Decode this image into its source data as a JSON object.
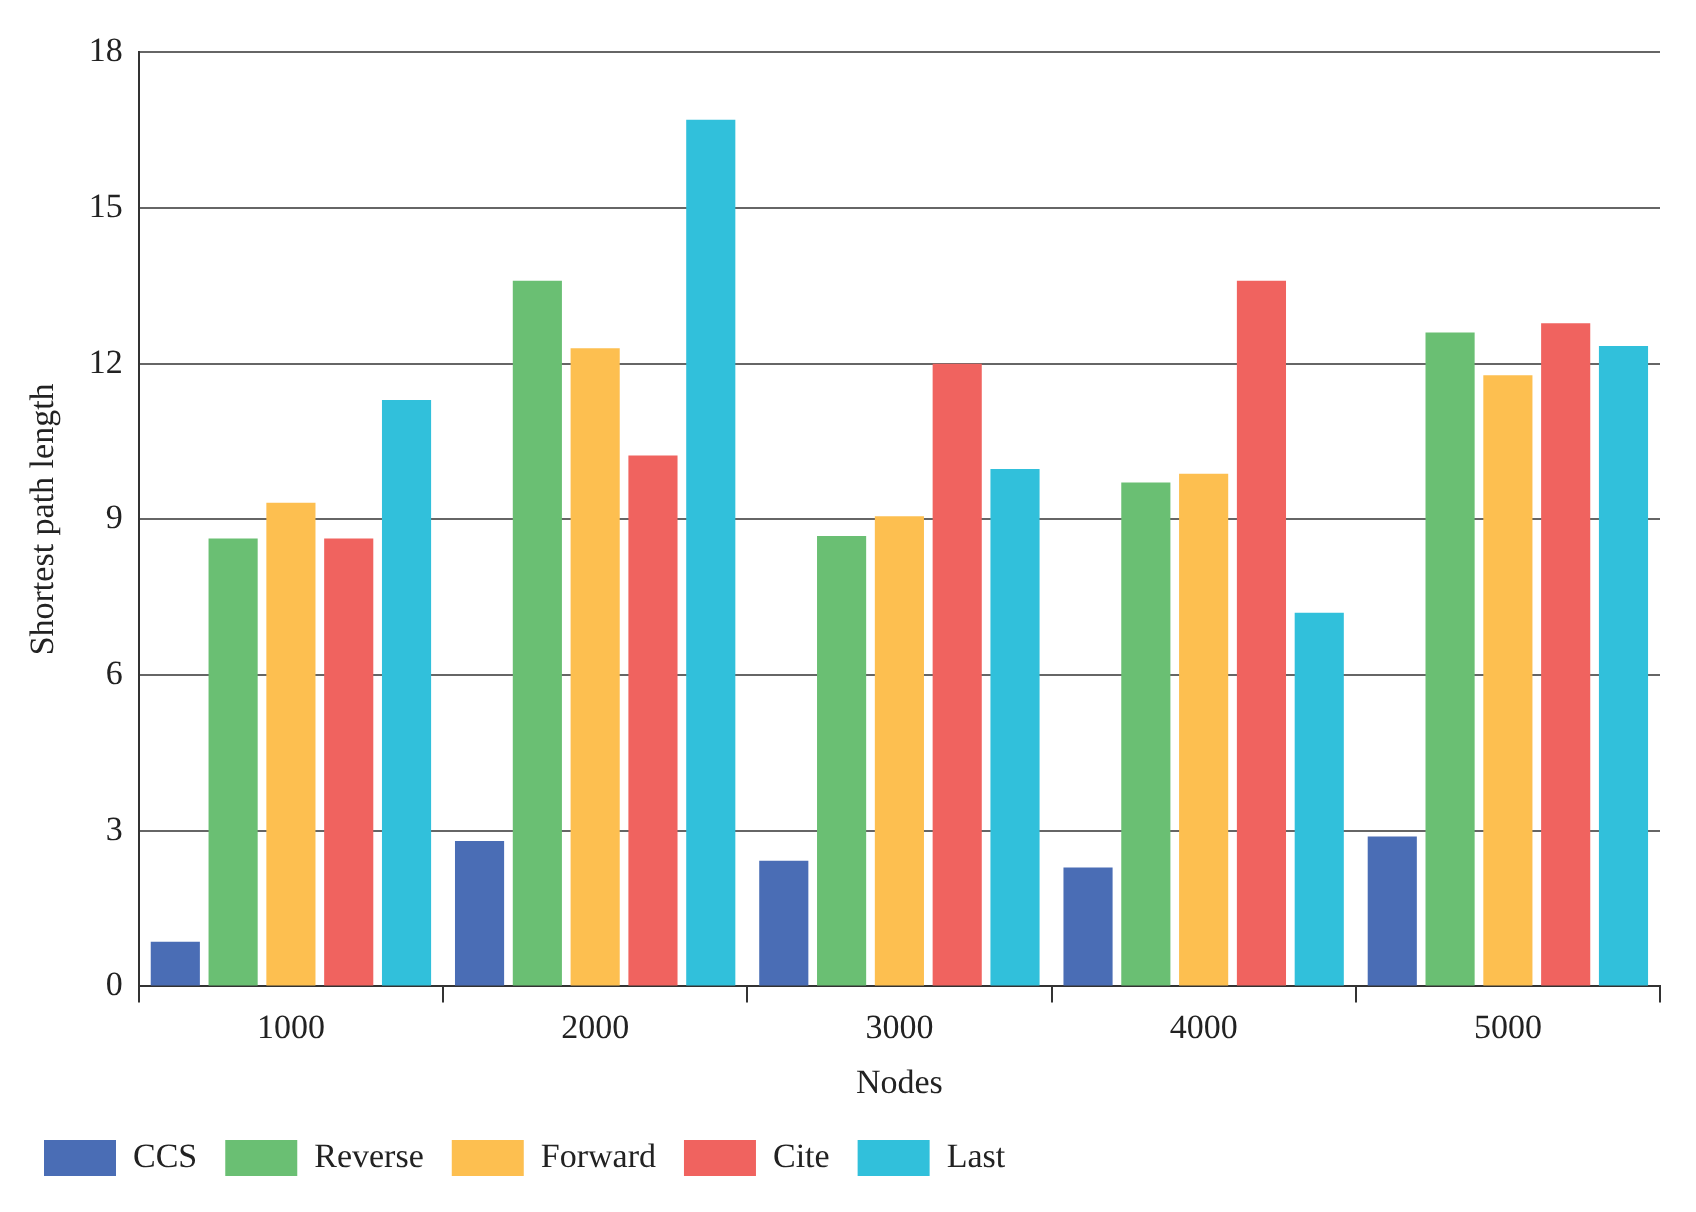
{
  "chart_data": {
    "type": "bar",
    "xlabel": "Nodes",
    "ylabel": "Shortest path length",
    "categories": [
      "1000",
      "2000",
      "3000",
      "4000",
      "5000"
    ],
    "series": [
      {
        "name": "CCS",
        "color": "#4a6db5",
        "values": [
          0.86,
          2.8,
          2.42,
          2.29,
          2.89
        ]
      },
      {
        "name": "Reverse",
        "color": "#6abf73",
        "values": [
          8.63,
          13.6,
          8.68,
          9.71,
          12.6
        ]
      },
      {
        "name": "Forward",
        "color": "#fdbf50",
        "values": [
          9.32,
          12.3,
          9.06,
          9.88,
          11.78
        ]
      },
      {
        "name": "Cite",
        "color": "#f0635f",
        "values": [
          8.63,
          10.23,
          12.0,
          13.6,
          12.78
        ]
      },
      {
        "name": "Last",
        "color": "#31c0db",
        "values": [
          11.3,
          16.7,
          9.97,
          7.2,
          12.34
        ]
      }
    ],
    "ylim": [
      0,
      18
    ],
    "yticks": [
      0,
      3,
      6,
      9,
      12,
      15,
      18
    ],
    "grid": "y",
    "legend": "bottom left"
  }
}
